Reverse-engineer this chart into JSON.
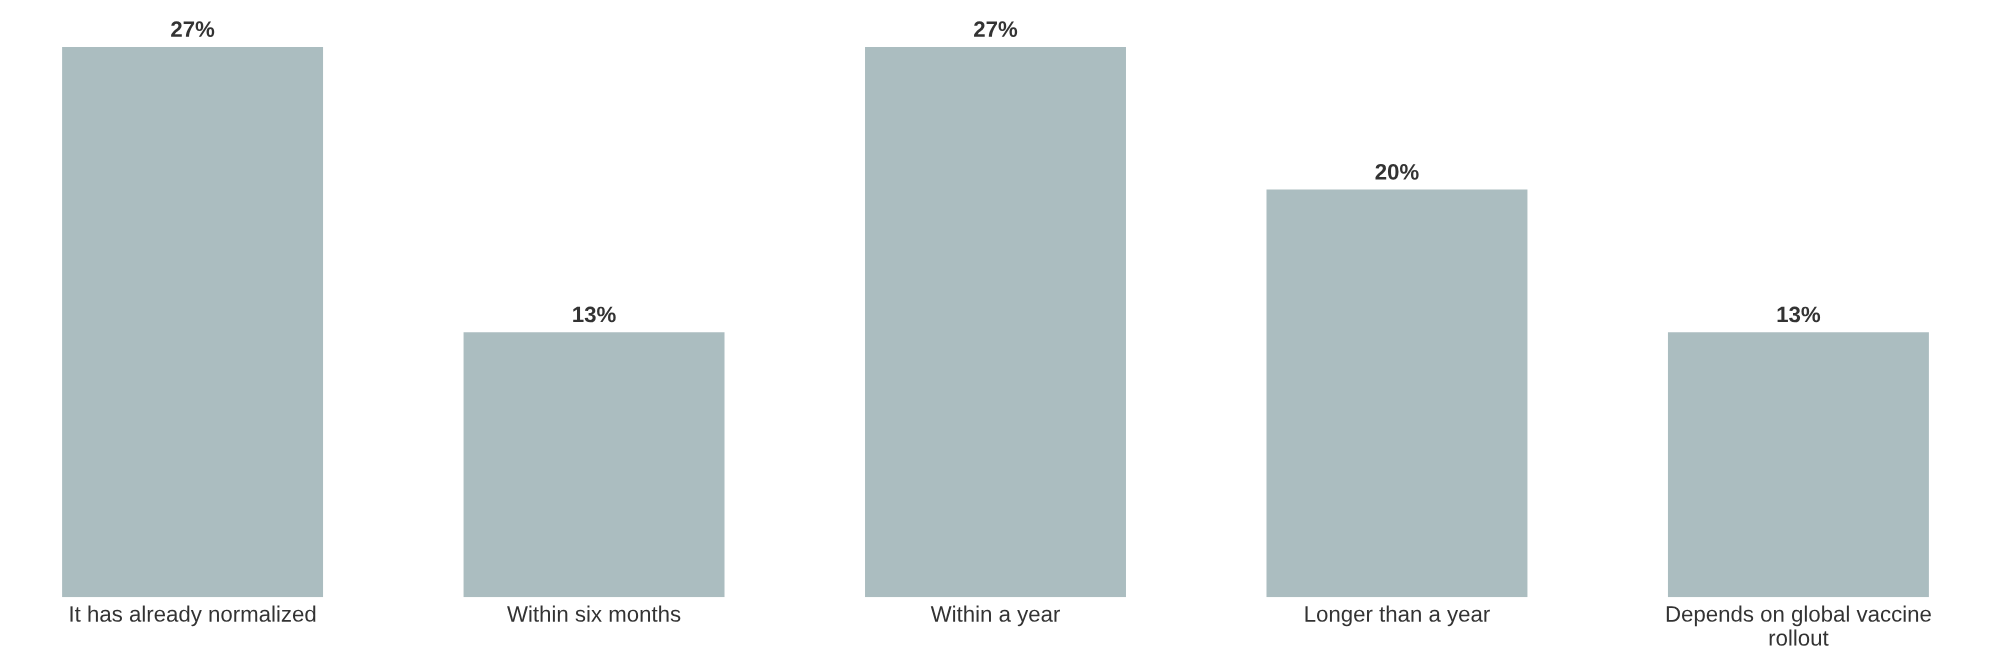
{
  "chart_data": {
    "type": "bar",
    "categories": [
      "It has already normalized",
      "Within six months",
      "Within a year",
      "Longer than a year",
      "Depends on global vaccine\nrollout"
    ],
    "values": [
      27,
      13,
      27,
      20,
      13
    ],
    "value_labels": [
      "27%",
      "13%",
      "27%",
      "20%",
      "13%"
    ],
    "color": "#abbdc0",
    "ylim": [
      0,
      27
    ],
    "grid": false,
    "legend": false
  }
}
